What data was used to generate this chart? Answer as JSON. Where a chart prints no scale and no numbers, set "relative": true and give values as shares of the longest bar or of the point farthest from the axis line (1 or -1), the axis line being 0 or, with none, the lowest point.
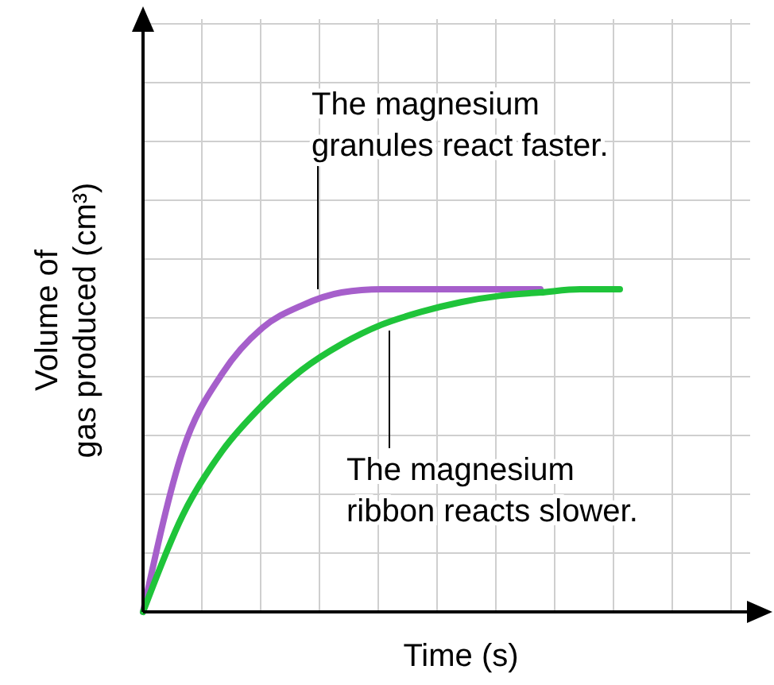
{
  "chart_data": {
    "type": "line",
    "relative": true,
    "xlabel": "Time (s)",
    "ylabel": "Volume of\ngas produced (cm³)",
    "grid": true,
    "marker": "none",
    "line_style": "solid",
    "categories": [
      null,
      null,
      null,
      null,
      null,
      null,
      null,
      null,
      null,
      null,
      null,
      null,
      null
    ],
    "series": [
      {
        "color": "#a65fcb",
        "values": [
          0,
          0.5,
          0.74,
          0.88,
          0.95,
          0.99,
          1,
          1,
          1,
          1,
          1,
          null,
          null
        ]
      },
      {
        "color": "#1fc43a",
        "values": [
          0,
          0.3,
          0.5,
          0.64,
          0.75,
          0.83,
          0.89,
          0.93,
          0.96,
          0.98,
          0.99,
          1,
          1
        ]
      }
    ],
    "annotations": [
      "The magnesium\ngranules react faster.",
      "The magnesium\nribbon reacts slower."
    ]
  }
}
